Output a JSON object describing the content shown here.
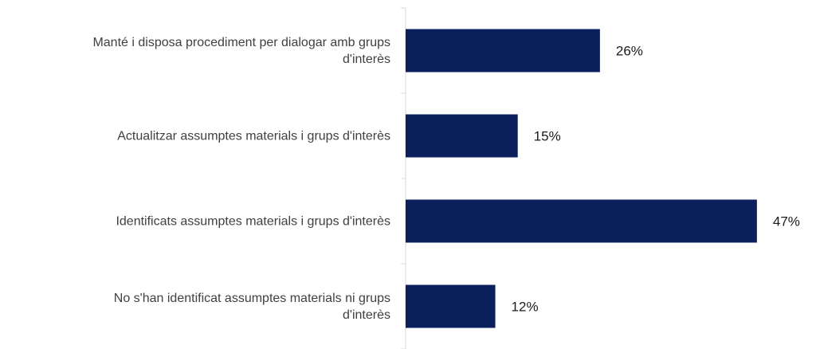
{
  "chart_data": {
    "type": "bar",
    "orientation": "horizontal",
    "categories": [
      "Manté i disposa procediment per dialogar amb grups d'interès",
      "Actualitzar assumptes materials i grups d'interès",
      "Identificats assumptes materials i grups d'interès",
      "No s'han identificat assumptes materials ni grups d'interès"
    ],
    "values": [
      26,
      15,
      47,
      12
    ],
    "value_labels": [
      "26%",
      "15%",
      "47%",
      "12%"
    ],
    "unit": "%",
    "xlim": [
      0,
      50
    ],
    "bar_color": "#0b1f5c",
    "grid": false,
    "legend": "none"
  }
}
